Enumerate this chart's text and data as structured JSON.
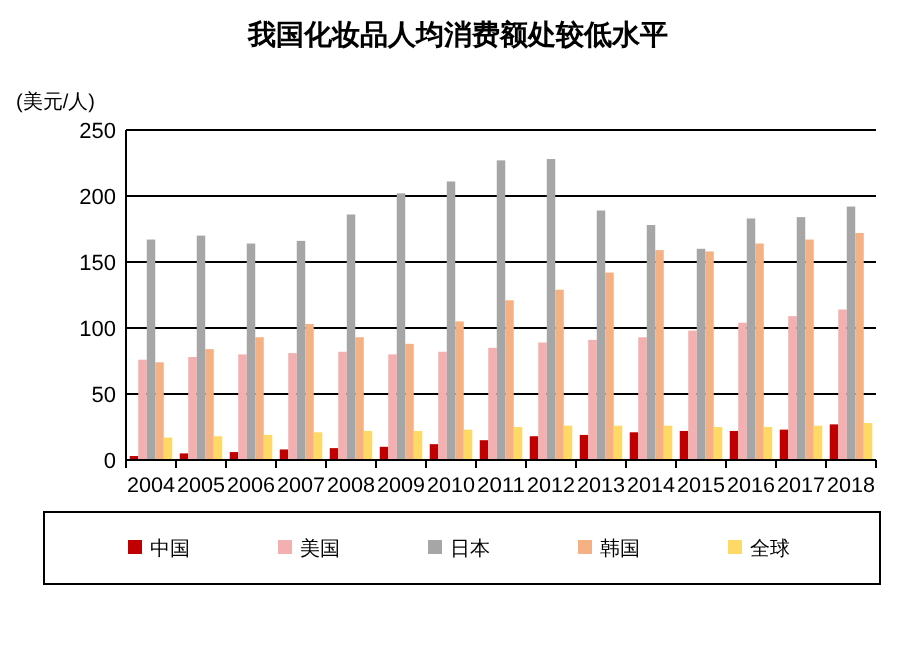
{
  "chart_data": {
    "type": "bar",
    "title": "我国化妆品人均消费额处较低水平",
    "ylabel": "(美元/人)",
    "categories": [
      "2004",
      "2005",
      "2006",
      "2007",
      "2008",
      "2009",
      "2010",
      "2011",
      "2012",
      "2013",
      "2014",
      "2015",
      "2016",
      "2017",
      "2018"
    ],
    "series": [
      {
        "name": "中国",
        "color": "#c00000",
        "values": [
          3,
          5,
          6,
          8,
          9,
          10,
          12,
          15,
          18,
          19,
          21,
          22,
          22,
          23,
          27
        ]
      },
      {
        "name": "美国",
        "color": "#f4b0b0",
        "values": [
          76,
          78,
          80,
          81,
          82,
          80,
          82,
          85,
          89,
          91,
          93,
          98,
          104,
          109,
          114
        ]
      },
      {
        "name": "日本",
        "color": "#a6a6a6",
        "values": [
          167,
          170,
          164,
          166,
          186,
          202,
          211,
          227,
          228,
          189,
          178,
          160,
          183,
          184,
          192
        ]
      },
      {
        "name": "韩国",
        "color": "#f4b183",
        "values": [
          74,
          84,
          93,
          103,
          93,
          88,
          105,
          121,
          129,
          142,
          159,
          158,
          164,
          167,
          172
        ]
      },
      {
        "name": "全球",
        "color": "#ffd966",
        "values": [
          17,
          18,
          19,
          21,
          22,
          22,
          23,
          25,
          26,
          26,
          26,
          25,
          25,
          26,
          28
        ]
      }
    ],
    "ylim": [
      0,
      250
    ],
    "yticks": [
      0,
      50,
      100,
      150,
      200,
      250
    ],
    "grid": "y",
    "legend": "bottom"
  }
}
